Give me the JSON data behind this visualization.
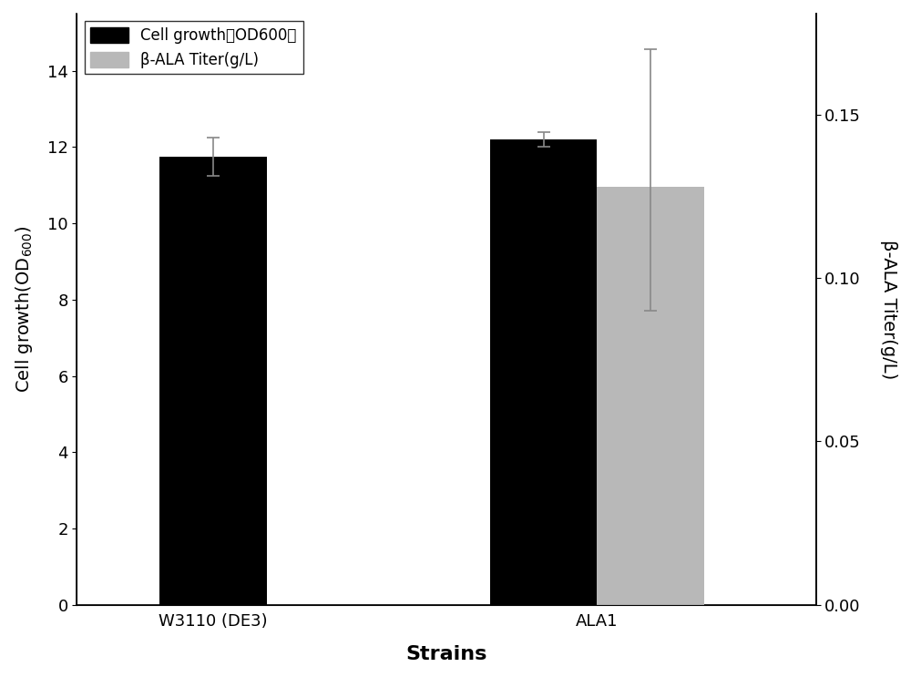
{
  "strains": [
    "W3110 (DE3)",
    "ALA1"
  ],
  "cell_growth_values": [
    11.75,
    12.2
  ],
  "cell_growth_errors": [
    0.5,
    0.2
  ],
  "bala_titer_value": 0.128,
  "bala_titer_error_low": 0.038,
  "bala_titer_error_high": 0.042,
  "left_ylim": [
    0,
    15.5
  ],
  "left_yticks": [
    0,
    2,
    4,
    6,
    8,
    10,
    12,
    14
  ],
  "right_ylim": [
    0.0,
    0.18083333
  ],
  "right_yticks": [
    0.0,
    0.05,
    0.1,
    0.15
  ],
  "black_bar_color": "#000000",
  "gray_bar_color": "#b8b8b8",
  "xlabel": "Strains",
  "ylabel_left": "Cell growth(OD$_{600}$)",
  "ylabel_right": "β-ALA Titer(g/L)",
  "legend_cell_growth": "Cell growth（OD600）",
  "legend_bala": "β-ALA Titer(g/L)"
}
